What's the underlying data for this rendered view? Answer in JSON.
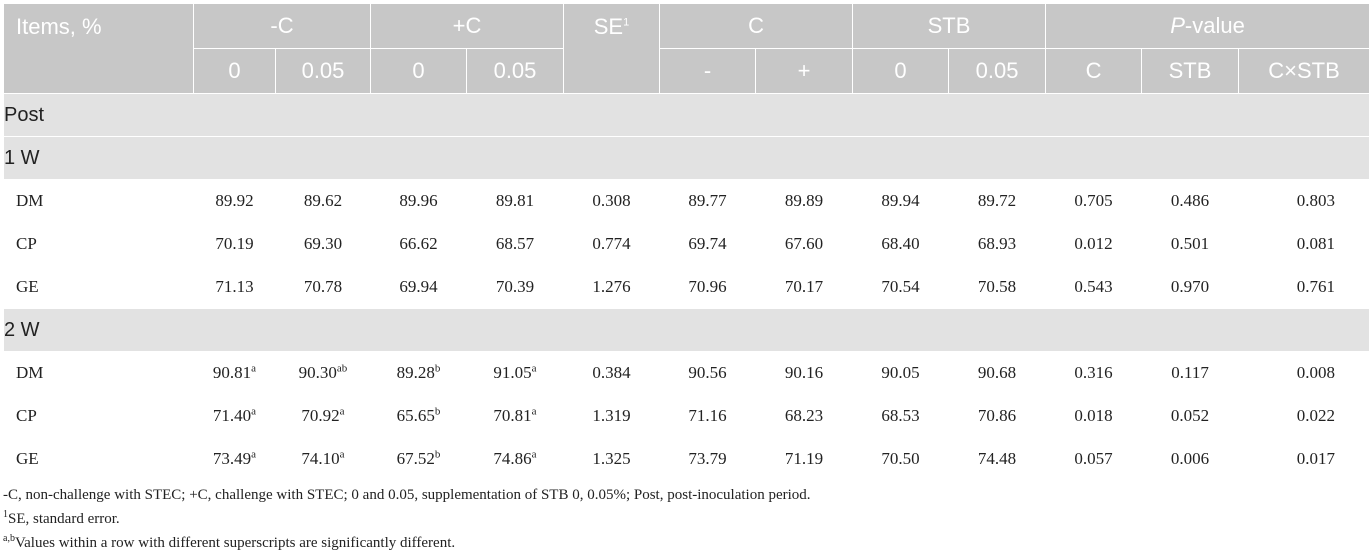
{
  "header": {
    "items": "Items, %",
    "minus_c": "-C",
    "plus_c": "+C",
    "se": "SE",
    "se_sup": "1",
    "c": "C",
    "stb": "STB",
    "p_italic": "P",
    "p_rest": "-value",
    "sub": [
      "0",
      "0.05",
      "0",
      "0.05",
      "-",
      "+",
      "0",
      "0.05",
      "C",
      "STB",
      "C×STB"
    ]
  },
  "sections": [
    {
      "label": "Post"
    },
    {
      "label": "1 W",
      "rows": [
        {
          "name": "DM",
          "cells": [
            [
              "89.92",
              ""
            ],
            [
              "89.62",
              ""
            ],
            [
              "89.96",
              ""
            ],
            [
              "89.81",
              ""
            ],
            [
              "0.308",
              ""
            ],
            [
              "89.77",
              ""
            ],
            [
              "89.89",
              ""
            ],
            [
              "89.94",
              ""
            ],
            [
              "89.72",
              ""
            ],
            [
              "0.705",
              ""
            ],
            [
              "0.486",
              ""
            ],
            [
              "0.803",
              ""
            ]
          ]
        },
        {
          "name": "CP",
          "cells": [
            [
              "70.19",
              ""
            ],
            [
              "69.30",
              ""
            ],
            [
              "66.62",
              ""
            ],
            [
              "68.57",
              ""
            ],
            [
              "0.774",
              ""
            ],
            [
              "69.74",
              ""
            ],
            [
              "67.60",
              ""
            ],
            [
              "68.40",
              ""
            ],
            [
              "68.93",
              ""
            ],
            [
              "0.012",
              ""
            ],
            [
              "0.501",
              ""
            ],
            [
              "0.081",
              ""
            ]
          ]
        },
        {
          "name": "GE",
          "cells": [
            [
              "71.13",
              ""
            ],
            [
              "70.78",
              ""
            ],
            [
              "69.94",
              ""
            ],
            [
              "70.39",
              ""
            ],
            [
              "1.276",
              ""
            ],
            [
              "70.96",
              ""
            ],
            [
              "70.17",
              ""
            ],
            [
              "70.54",
              ""
            ],
            [
              "70.58",
              ""
            ],
            [
              "0.543",
              ""
            ],
            [
              "0.970",
              ""
            ],
            [
              "0.761",
              ""
            ]
          ]
        }
      ]
    },
    {
      "label": "2 W",
      "rows": [
        {
          "name": "DM",
          "cells": [
            [
              "90.81",
              "a"
            ],
            [
              "90.30",
              "ab"
            ],
            [
              "89.28",
              "b"
            ],
            [
              "91.05",
              "a"
            ],
            [
              "0.384",
              ""
            ],
            [
              "90.56",
              ""
            ],
            [
              "90.16",
              ""
            ],
            [
              "90.05",
              ""
            ],
            [
              "90.68",
              ""
            ],
            [
              "0.316",
              ""
            ],
            [
              "0.117",
              ""
            ],
            [
              "0.008",
              ""
            ]
          ]
        },
        {
          "name": "CP",
          "cells": [
            [
              "71.40",
              "a"
            ],
            [
              "70.92",
              "a"
            ],
            [
              "65.65",
              "b"
            ],
            [
              "70.81",
              "a"
            ],
            [
              "1.319",
              ""
            ],
            [
              "71.16",
              ""
            ],
            [
              "68.23",
              ""
            ],
            [
              "68.53",
              ""
            ],
            [
              "70.86",
              ""
            ],
            [
              "0.018",
              ""
            ],
            [
              "0.052",
              ""
            ],
            [
              "0.022",
              ""
            ]
          ]
        },
        {
          "name": "GE",
          "cells": [
            [
              "73.49",
              "a"
            ],
            [
              "74.10",
              "a"
            ],
            [
              "67.52",
              "b"
            ],
            [
              "74.86",
              "a"
            ],
            [
              "1.325",
              ""
            ],
            [
              "73.79",
              ""
            ],
            [
              "71.19",
              ""
            ],
            [
              "70.50",
              ""
            ],
            [
              "74.48",
              ""
            ],
            [
              "0.057",
              ""
            ],
            [
              "0.006",
              ""
            ],
            [
              "0.017",
              ""
            ]
          ]
        }
      ]
    }
  ],
  "footnotes": {
    "line1": "-C, non-challenge with STEC; +C, challenge with STEC; 0 and 0.05, supplementation of STB 0, 0.05%; Post, post-inoculation period.",
    "line2_sup": "1",
    "line2": "SE, standard error.",
    "line3_sup": "a,b",
    "line3": "Values within a row with different superscripts are significantly different."
  }
}
